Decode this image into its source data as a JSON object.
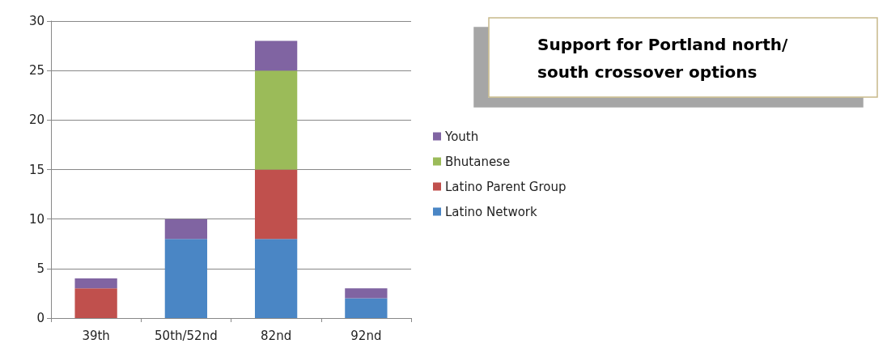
{
  "chart_data": {
    "type": "bar",
    "title": "Support for Portland north/south crossover options",
    "categories": [
      "39th",
      "50th/52nd",
      "82nd",
      "92nd"
    ],
    "stacked": true,
    "series": [
      {
        "name": "Latino Network",
        "color": "#4a86c5",
        "values": [
          null,
          8,
          8,
          2
        ]
      },
      {
        "name": "Latino Parent Group",
        "color": "#c0504d",
        "values": [
          3,
          null,
          7,
          null
        ]
      },
      {
        "name": "Bhutanese",
        "color": "#9bbb59",
        "values": [
          null,
          null,
          10,
          null
        ]
      },
      {
        "name": "Youth",
        "color": "#8064a2",
        "values": [
          1,
          2,
          3,
          1
        ]
      }
    ],
    "ylim": [
      0,
      30
    ],
    "yticks": [
      0,
      5,
      10,
      15,
      20,
      25,
      30
    ],
    "grid": "y",
    "legend": "right"
  }
}
